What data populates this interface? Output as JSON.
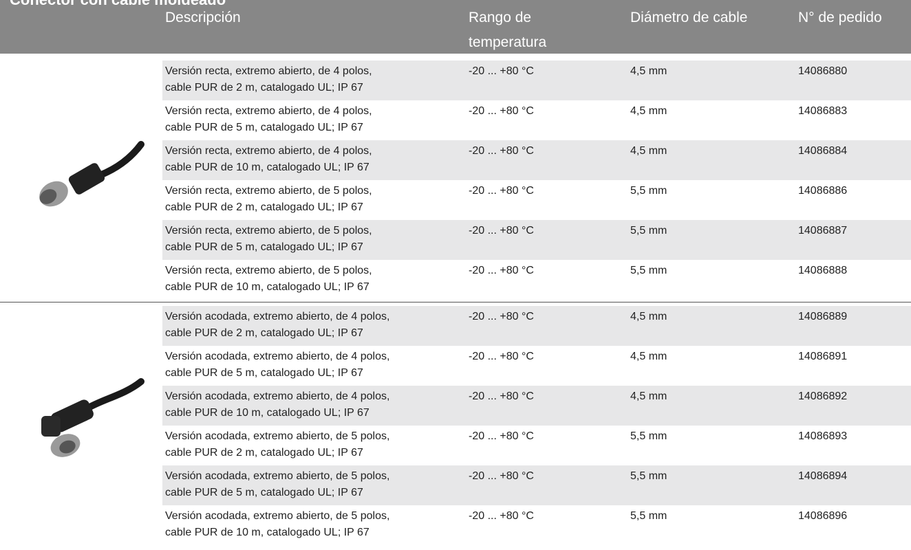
{
  "header": {
    "title": "Conector con cable moldeado",
    "columns": [
      [
        "Descripción"
      ],
      [
        "Rango de",
        "temperatura"
      ],
      [
        "Diámetro de cable"
      ],
      [
        "N° de pedido"
      ]
    ]
  },
  "table": {
    "groups": [
      {
        "rows": [
          [
            [
              "Versión recta, extremo abierto, de 4 polos,",
              "cable PUR de 2 m, catalogado UL; IP 67"
            ],
            "-20 ... +80 °C",
            "4,5 mm",
            "14086880"
          ],
          [
            [
              "Versión recta, extremo abierto, de 4 polos,",
              "cable PUR de 5 m, catalogado UL; IP 67"
            ],
            "-20 ... +80 °C",
            "4,5 mm",
            "14086883"
          ],
          [
            [
              "Versión recta, extremo abierto, de 4 polos,",
              "cable PUR de 10 m, catalogado UL; IP 67"
            ],
            "-20 ... +80 °C",
            "4,5 mm",
            "14086884"
          ],
          [
            [
              "Versión recta, extremo abierto, de 5 polos,",
              "cable PUR de 2 m, catalogado UL; IP 67"
            ],
            "-20 ... +80 °C",
            "5,5 mm",
            "14086886"
          ],
          [
            [
              "Versión recta, extremo abierto, de 5 polos,",
              "cable PUR de 5 m, catalogado UL; IP 67"
            ],
            "-20 ... +80 °C",
            "5,5 mm",
            "14086887"
          ],
          [
            [
              "Versión recta, extremo abierto, de 5 polos,",
              "cable PUR de 10 m, catalogado UL; IP 67"
            ],
            "-20 ... +80 °C",
            "5,5 mm",
            "14086888"
          ]
        ]
      },
      {
        "rows": [
          [
            [
              "Versión acodada, extremo abierto, de 4 polos,",
              "cable PUR de 2 m, catalogado UL; IP 67"
            ],
            "-20 ... +80 °C",
            "4,5 mm",
            "14086889"
          ],
          [
            [
              "Versión acodada, extremo abierto, de 4 polos,",
              "cable PUR de 5 m, catalogado UL; IP 67"
            ],
            "-20 ... +80 °C",
            "4,5 mm",
            "14086891"
          ],
          [
            [
              "Versión acodada, extremo abierto, de 4 polos,",
              "cable PUR de 10 m, catalogado UL; IP 67"
            ],
            "-20 ... +80 °C",
            "4,5 mm",
            "14086892"
          ],
          [
            [
              "Versión acodada, extremo abierto, de 5 polos,",
              "cable PUR de 2 m, catalogado UL; IP 67"
            ],
            "-20 ... +80 °C",
            "5,5 mm",
            "14086893"
          ],
          [
            [
              "Versión acodada, extremo abierto, de 5 polos,",
              "cable PUR de 5 m, catalogado UL; IP 67"
            ],
            "-20 ... +80 °C",
            "5,5 mm",
            "14086894"
          ],
          [
            [
              "Versión acodada, extremo abierto, de 5 polos,",
              "cable PUR de 10 m, catalogado UL; IP 67"
            ],
            "-20 ... +80 °C",
            "5,5 mm",
            "14086896"
          ]
        ]
      }
    ]
  }
}
